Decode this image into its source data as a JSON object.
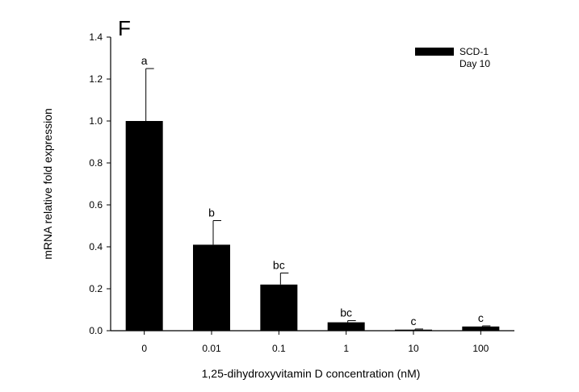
{
  "panel_label": "F",
  "chart_data": {
    "type": "bar",
    "categories": [
      "0",
      "0.01",
      "0.1",
      "1",
      "10",
      "100"
    ],
    "series": [
      {
        "name": "SCD-1",
        "values": [
          1.0,
          0.41,
          0.22,
          0.04,
          0.005,
          0.02
        ],
        "errors": [
          0.25,
          0.115,
          0.055,
          0.008,
          0.003,
          0.003
        ],
        "color": "#000000"
      }
    ],
    "significance_letters": [
      "a",
      "b",
      "bc",
      "bc",
      "c",
      "c"
    ],
    "legend": {
      "entries": [
        "SCD-1",
        "Day 10"
      ],
      "placement": "top-right"
    },
    "xlabel": "1,25-dihydroxyvitamin D concentration (nM)",
    "ylabel": "mRNA relative fold expression",
    "ylim": [
      0,
      1.4
    ],
    "yticks": [
      "0.0",
      "0.2",
      "0.4",
      "0.6",
      "0.8",
      "1.0",
      "1.2",
      "1.4"
    ],
    "grid": false
  }
}
